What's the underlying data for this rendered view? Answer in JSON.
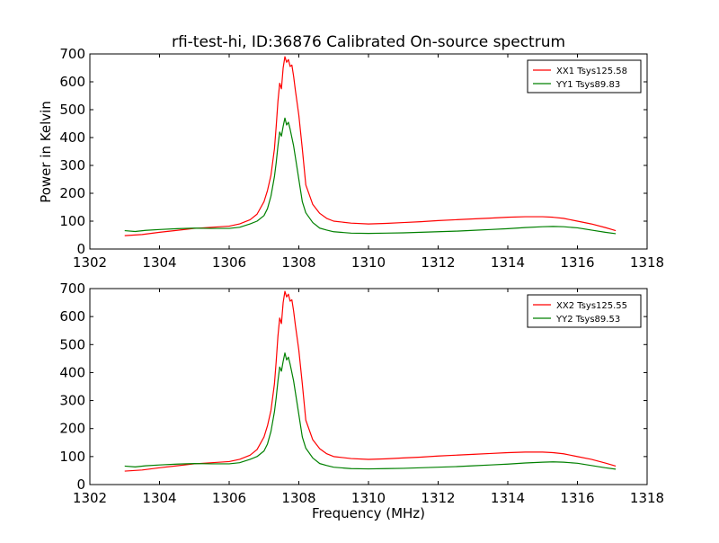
{
  "figure": {
    "title": "rfi-test-hi, ID:36876 Calibrated On-source spectrum",
    "ylabel": "Power in Kelvin",
    "xlabel": "Frequency (MHz)"
  },
  "chart_data": [
    {
      "type": "line",
      "title": "rfi-test-hi, ID:36876 Calibrated On-source spectrum",
      "ylabel": "Power in Kelvin",
      "xlabel": "",
      "xlim": [
        1302,
        1318
      ],
      "ylim": [
        0,
        700
      ],
      "xticks": [
        "1302",
        "1304",
        "1306",
        "1308",
        "1310",
        "1312",
        "1314",
        "1316",
        "1318"
      ],
      "yticks": [
        "0",
        "100",
        "200",
        "300",
        "400",
        "500",
        "600",
        "700"
      ],
      "legend_position": "top-right",
      "grid": false,
      "series": [
        {
          "name": "XX1 Tsys125.58",
          "color": "#ff0000",
          "x": [
            1303.0,
            1303.5,
            1304.0,
            1304.5,
            1305.0,
            1305.5,
            1306.0,
            1306.3,
            1306.6,
            1306.8,
            1307.0,
            1307.1,
            1307.2,
            1307.3,
            1307.35,
            1307.4,
            1307.45,
            1307.5,
            1307.55,
            1307.6,
            1307.65,
            1307.7,
            1307.75,
            1307.8,
            1307.85,
            1307.9,
            1308.0,
            1308.1,
            1308.2,
            1308.4,
            1308.6,
            1308.8,
            1309.0,
            1309.5,
            1310.0,
            1310.5,
            1311.0,
            1311.5,
            1312.0,
            1312.5,
            1313.0,
            1313.5,
            1314.0,
            1314.5,
            1315.0,
            1315.3,
            1315.6,
            1316.0,
            1316.4,
            1316.8,
            1317.1
          ],
          "y": [
            48,
            52,
            60,
            67,
            74,
            78,
            82,
            90,
            105,
            125,
            170,
            210,
            265,
            360,
            440,
            530,
            595,
            575,
            650,
            690,
            670,
            680,
            655,
            660,
            620,
            570,
            480,
            360,
            230,
            160,
            128,
            110,
            100,
            93,
            90,
            92,
            95,
            98,
            102,
            105,
            108,
            111,
            114,
            116,
            116,
            114,
            110,
            100,
            90,
            77,
            66
          ]
        },
        {
          "name": "YY1 Tsys89.83",
          "color": "#008000",
          "x": [
            1303.0,
            1303.3,
            1303.6,
            1304.0,
            1304.5,
            1305.0,
            1305.5,
            1306.0,
            1306.3,
            1306.6,
            1306.8,
            1307.0,
            1307.1,
            1307.2,
            1307.3,
            1307.35,
            1307.4,
            1307.45,
            1307.5,
            1307.55,
            1307.6,
            1307.65,
            1307.7,
            1307.75,
            1307.8,
            1307.85,
            1307.9,
            1308.0,
            1308.1,
            1308.2,
            1308.4,
            1308.6,
            1308.8,
            1309.0,
            1309.5,
            1310.0,
            1310.5,
            1311.0,
            1311.5,
            1312.0,
            1312.5,
            1313.0,
            1313.5,
            1314.0,
            1314.5,
            1315.0,
            1315.3,
            1315.6,
            1316.0,
            1316.4,
            1316.8,
            1317.1
          ],
          "y": [
            66,
            63,
            67,
            70,
            73,
            75,
            74,
            74,
            78,
            90,
            100,
            120,
            145,
            190,
            260,
            310,
            370,
            420,
            405,
            440,
            470,
            445,
            455,
            430,
            400,
            370,
            330,
            250,
            170,
            130,
            95,
            75,
            68,
            62,
            57,
            56,
            57,
            58,
            60,
            62,
            64,
            67,
            70,
            73,
            77,
            80,
            81,
            80,
            76,
            68,
            60,
            55
          ]
        }
      ]
    },
    {
      "type": "line",
      "title": "",
      "ylabel": "",
      "xlabel": "Frequency (MHz)",
      "xlim": [
        1302,
        1318
      ],
      "ylim": [
        0,
        700
      ],
      "xticks": [
        "1302",
        "1304",
        "1306",
        "1308",
        "1310",
        "1312",
        "1314",
        "1316",
        "1318"
      ],
      "yticks": [
        "0",
        "100",
        "200",
        "300",
        "400",
        "500",
        "600",
        "700"
      ],
      "legend_position": "top-right",
      "grid": false,
      "series": [
        {
          "name": "XX2 Tsys125.55",
          "color": "#ff0000",
          "x": [
            1303.0,
            1303.5,
            1304.0,
            1304.5,
            1305.0,
            1305.5,
            1306.0,
            1306.3,
            1306.6,
            1306.8,
            1307.0,
            1307.1,
            1307.2,
            1307.3,
            1307.35,
            1307.4,
            1307.45,
            1307.5,
            1307.55,
            1307.6,
            1307.65,
            1307.7,
            1307.75,
            1307.8,
            1307.85,
            1307.9,
            1308.0,
            1308.1,
            1308.2,
            1308.4,
            1308.6,
            1308.8,
            1309.0,
            1309.5,
            1310.0,
            1310.5,
            1311.0,
            1311.5,
            1312.0,
            1312.5,
            1313.0,
            1313.5,
            1314.0,
            1314.5,
            1315.0,
            1315.3,
            1315.6,
            1316.0,
            1316.4,
            1316.8,
            1317.1
          ],
          "y": [
            48,
            52,
            60,
            67,
            74,
            78,
            82,
            90,
            105,
            125,
            170,
            210,
            265,
            360,
            440,
            530,
            595,
            575,
            650,
            690,
            670,
            680,
            655,
            660,
            620,
            570,
            480,
            360,
            230,
            160,
            128,
            110,
            100,
            93,
            90,
            92,
            95,
            98,
            102,
            105,
            108,
            111,
            114,
            116,
            116,
            114,
            110,
            100,
            90,
            77,
            66
          ]
        },
        {
          "name": "YY2 Tsys89.53",
          "color": "#008000",
          "x": [
            1303.0,
            1303.3,
            1303.6,
            1304.0,
            1304.5,
            1305.0,
            1305.5,
            1306.0,
            1306.3,
            1306.6,
            1306.8,
            1307.0,
            1307.1,
            1307.2,
            1307.3,
            1307.35,
            1307.4,
            1307.45,
            1307.5,
            1307.55,
            1307.6,
            1307.65,
            1307.7,
            1307.75,
            1307.8,
            1307.85,
            1307.9,
            1308.0,
            1308.1,
            1308.2,
            1308.4,
            1308.6,
            1308.8,
            1309.0,
            1309.5,
            1310.0,
            1310.5,
            1311.0,
            1311.5,
            1312.0,
            1312.5,
            1313.0,
            1313.5,
            1314.0,
            1314.5,
            1315.0,
            1315.3,
            1315.6,
            1316.0,
            1316.4,
            1316.8,
            1317.1
          ],
          "y": [
            66,
            63,
            67,
            70,
            73,
            75,
            74,
            74,
            78,
            90,
            100,
            120,
            145,
            190,
            260,
            310,
            370,
            420,
            405,
            440,
            470,
            445,
            455,
            430,
            400,
            370,
            330,
            250,
            170,
            130,
            95,
            75,
            68,
            62,
            57,
            56,
            57,
            58,
            60,
            62,
            64,
            67,
            70,
            73,
            77,
            80,
            81,
            80,
            76,
            68,
            60,
            55
          ]
        }
      ]
    }
  ]
}
